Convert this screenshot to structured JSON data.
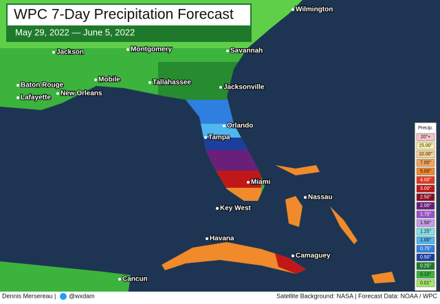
{
  "header": {
    "title": "WPC 7-Day Precipitation Forecast",
    "subtitle": "May 29, 2022 — June 5, 2022"
  },
  "cities": [
    "Wilmington",
    "Jackson",
    "Montgomery",
    "Savannah",
    "Mobile",
    "Baton Rouge",
    "New Orleans",
    "Tallahassee",
    "Jacksonville",
    "Lafayette",
    "Orlando",
    "Tampa",
    "Miami",
    "Nassau",
    "Key West",
    "Havana",
    "Camaguey",
    "Cancun"
  ],
  "legend": {
    "title": "Precip.",
    "items": [
      {
        "label": "20\"+",
        "color": "#f6c3c8"
      },
      {
        "label": "15.00\"",
        "color": "#fdf3a8"
      },
      {
        "label": "10.00\"",
        "color": "#fcd38c"
      },
      {
        "label": "7.00\"",
        "color": "#f5a35a"
      },
      {
        "label": "5.00\"",
        "color": "#f08a2a"
      },
      {
        "label": "4.00\"",
        "color": "#e03a1c"
      },
      {
        "label": "3.00\"",
        "color": "#c01818"
      },
      {
        "label": "2.50\"",
        "color": "#8a0f24"
      },
      {
        "label": "2.00\"",
        "color": "#6a1f7a"
      },
      {
        "label": "1.75\"",
        "color": "#9a52c8"
      },
      {
        "label": "1.50\"",
        "color": "#c79be6"
      },
      {
        "label": "1.25\"",
        "color": "#7fe0e8"
      },
      {
        "label": "1.00\"",
        "color": "#4fb6f0"
      },
      {
        "label": "0.75\"",
        "color": "#2f7fe0"
      },
      {
        "label": "0.50\"",
        "color": "#1c3f9e"
      },
      {
        "label": "0.25\"",
        "color": "#1e7a2a"
      },
      {
        "label": "0.10\"",
        "color": "#3cb33c"
      },
      {
        "label": "0.01\"",
        "color": "#a6e66a"
      }
    ]
  },
  "footer": {
    "author": "Dennis Mersereau |",
    "handle": "@wxdam",
    "credits": "Satellite Background: NASA | Forecast Data: NOAA / WPC"
  }
}
